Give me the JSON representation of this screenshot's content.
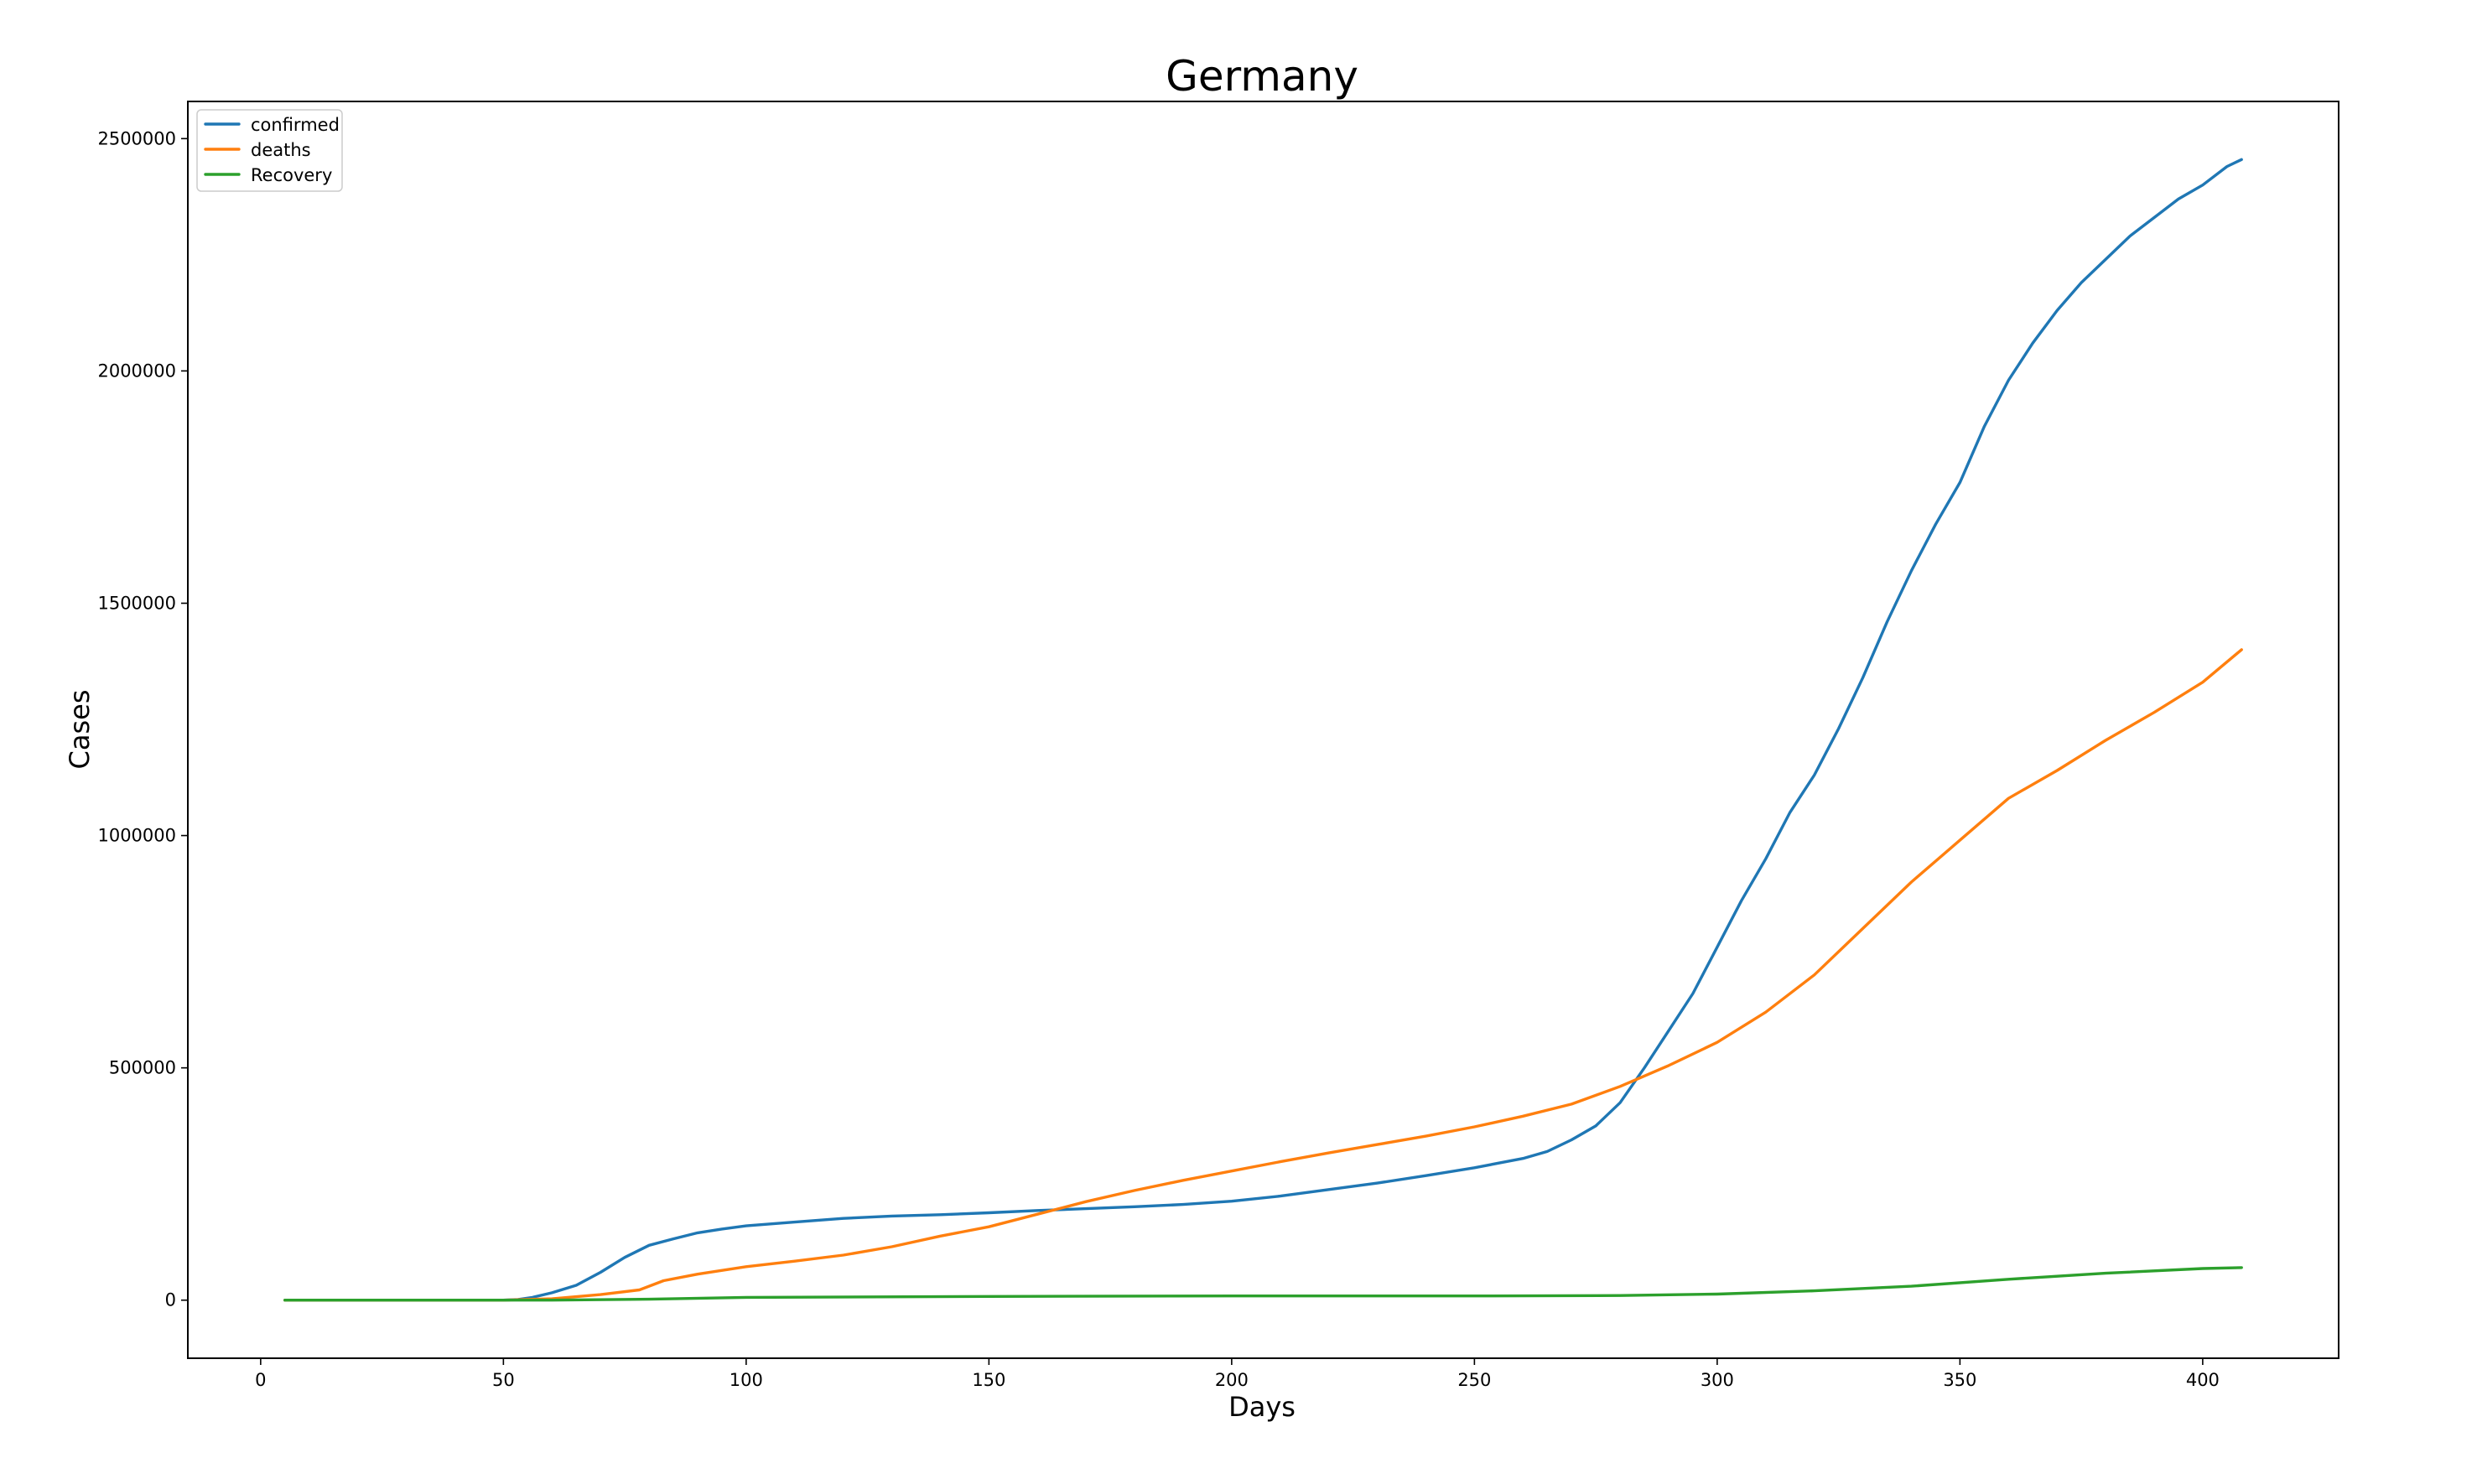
{
  "chart_data": {
    "type": "line",
    "title": "Germany",
    "xlabel": "Days",
    "ylabel": "Cases",
    "xlim": [
      -15,
      428
    ],
    "ylim": [
      -125000,
      2580000
    ],
    "x_ticks": [
      0,
      50,
      100,
      150,
      200,
      250,
      300,
      350,
      400
    ],
    "y_ticks": [
      0,
      500000,
      1000000,
      1500000,
      2000000,
      2500000
    ],
    "grid": false,
    "legend_position": "upper-left",
    "series": [
      {
        "name": "confirmed",
        "color": "#1f77b4",
        "points": [
          [
            5,
            0
          ],
          [
            50,
            0
          ],
          [
            53,
            1500
          ],
          [
            56,
            6000
          ],
          [
            60,
            16000
          ],
          [
            65,
            32000
          ],
          [
            70,
            60000
          ],
          [
            75,
            92000
          ],
          [
            80,
            118000
          ],
          [
            85,
            132000
          ],
          [
            90,
            145000
          ],
          [
            95,
            153000
          ],
          [
            100,
            160000
          ],
          [
            110,
            168000
          ],
          [
            120,
            176000
          ],
          [
            130,
            181000
          ],
          [
            140,
            184000
          ],
          [
            150,
            188000
          ],
          [
            160,
            193000
          ],
          [
            170,
            197000
          ],
          [
            180,
            201000
          ],
          [
            190,
            206000
          ],
          [
            200,
            213000
          ],
          [
            210,
            224000
          ],
          [
            220,
            238000
          ],
          [
            230,
            252000
          ],
          [
            240,
            268000
          ],
          [
            250,
            285000
          ],
          [
            260,
            305000
          ],
          [
            265,
            320000
          ],
          [
            270,
            345000
          ],
          [
            275,
            375000
          ],
          [
            280,
            425000
          ],
          [
            285,
            500000
          ],
          [
            290,
            580000
          ],
          [
            295,
            660000
          ],
          [
            300,
            760000
          ],
          [
            305,
            860000
          ],
          [
            310,
            950000
          ],
          [
            315,
            1050000
          ],
          [
            320,
            1130000
          ],
          [
            325,
            1230000
          ],
          [
            330,
            1340000
          ],
          [
            335,
            1460000
          ],
          [
            340,
            1570000
          ],
          [
            345,
            1670000
          ],
          [
            350,
            1760000
          ],
          [
            355,
            1880000
          ],
          [
            360,
            1980000
          ],
          [
            365,
            2060000
          ],
          [
            370,
            2130000
          ],
          [
            375,
            2190000
          ],
          [
            380,
            2240000
          ],
          [
            385,
            2290000
          ],
          [
            390,
            2330000
          ],
          [
            395,
            2370000
          ],
          [
            400,
            2400000
          ],
          [
            405,
            2440000
          ],
          [
            408,
            2455000
          ]
        ]
      },
      {
        "name": "deaths",
        "color": "#ff7f0e",
        "points": [
          [
            5,
            0
          ],
          [
            50,
            0
          ],
          [
            60,
            3000
          ],
          [
            70,
            12000
          ],
          [
            78,
            22000
          ],
          [
            83,
            42000
          ],
          [
            90,
            56000
          ],
          [
            100,
            72000
          ],
          [
            110,
            84000
          ],
          [
            120,
            97000
          ],
          [
            130,
            115000
          ],
          [
            140,
            138000
          ],
          [
            150,
            158000
          ],
          [
            160,
            185000
          ],
          [
            170,
            212000
          ],
          [
            180,
            236000
          ],
          [
            190,
            258000
          ],
          [
            200,
            278000
          ],
          [
            210,
            298000
          ],
          [
            220,
            317000
          ],
          [
            230,
            335000
          ],
          [
            240,
            353000
          ],
          [
            250,
            373000
          ],
          [
            260,
            396000
          ],
          [
            270,
            422000
          ],
          [
            280,
            460000
          ],
          [
            290,
            505000
          ],
          [
            300,
            555000
          ],
          [
            310,
            620000
          ],
          [
            320,
            700000
          ],
          [
            330,
            800000
          ],
          [
            340,
            900000
          ],
          [
            350,
            990000
          ],
          [
            360,
            1080000
          ],
          [
            370,
            1140000
          ],
          [
            380,
            1205000
          ],
          [
            390,
            1265000
          ],
          [
            400,
            1330000
          ],
          [
            408,
            1400000
          ]
        ]
      },
      {
        "name": "Recovery",
        "color": "#2ca02c",
        "points": [
          [
            5,
            0
          ],
          [
            60,
            0
          ],
          [
            80,
            2000
          ],
          [
            100,
            6000
          ],
          [
            150,
            8000
          ],
          [
            200,
            9000
          ],
          [
            250,
            9000
          ],
          [
            280,
            10000
          ],
          [
            300,
            13000
          ],
          [
            320,
            20000
          ],
          [
            340,
            30000
          ],
          [
            360,
            45000
          ],
          [
            380,
            58000
          ],
          [
            400,
            68000
          ],
          [
            408,
            70000
          ]
        ]
      }
    ]
  }
}
